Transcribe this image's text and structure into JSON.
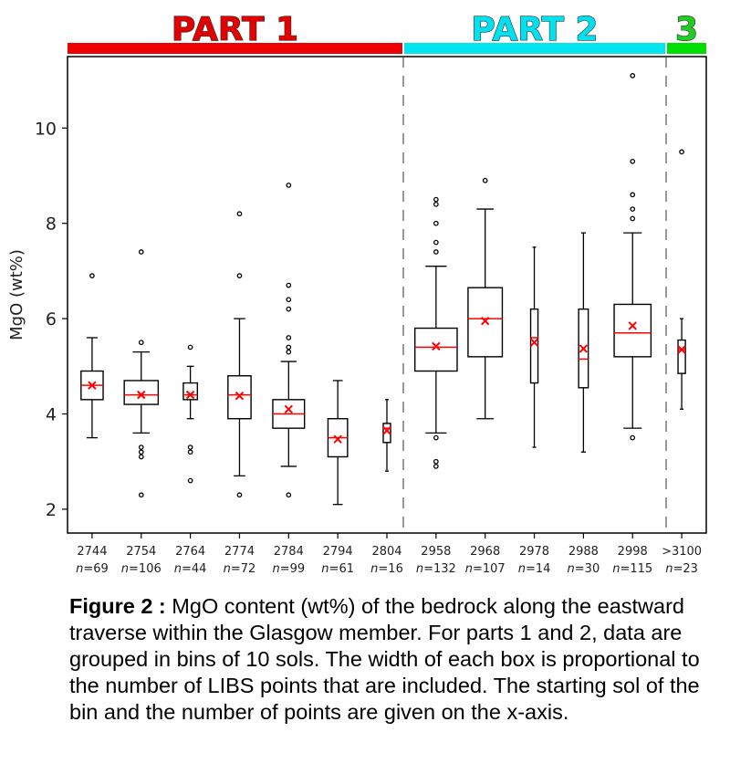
{
  "chart_data": {
    "type": "box",
    "ylabel": "MgO (wt%)",
    "ylim": [
      1.5,
      11.5
    ],
    "yticks": [
      2,
      4,
      6,
      8,
      10
    ],
    "parts": [
      {
        "label": "PART 1",
        "color": "#ee0000",
        "text_color": "#e00000",
        "outline": "#333333"
      },
      {
        "label": "PART 2",
        "color": "#00e5ee",
        "text_color": "#00e0ee",
        "outline": "#333333"
      },
      {
        "label": "3",
        "color": "#00dd00",
        "text_color": "#22cc22",
        "outline": "#333333"
      }
    ],
    "mean_color": "#ff0000",
    "median_color": "#ff0000",
    "bins": [
      {
        "sol": "2744",
        "n": "69",
        "whisker_low": 3.5,
        "q1": 4.3,
        "median": 4.6,
        "q3": 4.9,
        "whisker_high": 5.6,
        "mean": 4.6,
        "outliers": [
          6.9
        ]
      },
      {
        "sol": "2754",
        "n": "106",
        "whisker_low": 3.6,
        "q1": 4.2,
        "median": 4.4,
        "q3": 4.7,
        "whisker_high": 5.3,
        "mean": 4.4,
        "outliers": [
          7.4,
          5.5,
          3.3,
          3.2,
          3.1,
          2.3
        ]
      },
      {
        "sol": "2764",
        "n": "44",
        "whisker_low": 3.9,
        "q1": 4.3,
        "median": 4.4,
        "q3": 4.65,
        "whisker_high": 5.0,
        "mean": 4.4,
        "outliers": [
          5.4,
          3.3,
          3.2,
          2.6
        ]
      },
      {
        "sol": "2774",
        "n": "72",
        "whisker_low": 2.7,
        "q1": 3.9,
        "median": 4.4,
        "q3": 4.8,
        "whisker_high": 6.0,
        "mean": 4.38,
        "outliers": [
          8.2,
          6.9,
          2.3
        ]
      },
      {
        "sol": "2784",
        "n": "99",
        "whisker_low": 2.9,
        "q1": 3.7,
        "median": 4.0,
        "q3": 4.3,
        "whisker_high": 5.1,
        "mean": 4.1,
        "outliers": [
          8.8,
          6.7,
          6.4,
          6.2,
          5.6,
          5.4,
          5.3,
          2.3
        ]
      },
      {
        "sol": "2794",
        "n": "61",
        "whisker_low": 2.1,
        "q1": 3.1,
        "median": 3.5,
        "q3": 3.9,
        "whisker_high": 4.7,
        "mean": 3.47,
        "outliers": []
      },
      {
        "sol": "2804",
        "n": "16",
        "whisker_low": 2.8,
        "q1": 3.4,
        "median": 3.7,
        "q3": 3.8,
        "whisker_high": 4.3,
        "mean": 3.65,
        "outliers": []
      },
      {
        "sol": "2958",
        "n": "132",
        "whisker_low": 3.6,
        "q1": 4.9,
        "median": 5.4,
        "q3": 5.8,
        "whisker_high": 7.1,
        "mean": 5.42,
        "outliers": [
          8.5,
          8.4,
          8.0,
          7.6,
          7.4,
          3.5,
          3.0,
          2.9
        ]
      },
      {
        "sol": "2968",
        "n": "107",
        "whisker_low": 3.9,
        "q1": 5.2,
        "median": 6.0,
        "q3": 6.65,
        "whisker_high": 8.3,
        "mean": 5.95,
        "outliers": [
          8.9
        ]
      },
      {
        "sol": "2978",
        "n": "14",
        "whisker_low": 3.3,
        "q1": 4.65,
        "median": 5.6,
        "q3": 6.2,
        "whisker_high": 7.5,
        "mean": 5.5,
        "outliers": []
      },
      {
        "sol": "2988",
        "n": "30",
        "whisker_low": 3.2,
        "q1": 4.55,
        "median": 5.15,
        "q3": 6.2,
        "whisker_high": 7.8,
        "mean": 5.37,
        "outliers": []
      },
      {
        "sol": "2998",
        "n": "115",
        "whisker_low": 3.7,
        "q1": 5.2,
        "median": 5.7,
        "q3": 6.3,
        "whisker_high": 7.8,
        "mean": 5.85,
        "outliers": [
          11.1,
          9.3,
          8.6,
          8.3,
          8.1,
          3.5
        ]
      },
      {
        "sol": ">3100",
        "n": "23",
        "whisker_low": 4.1,
        "q1": 4.85,
        "median": 5.35,
        "q3": 5.55,
        "whisker_high": 6.0,
        "mean": 5.35,
        "outliers": [
          9.5
        ]
      }
    ]
  },
  "caption": {
    "label": "Figure 2 :",
    "text": "MgO content (wt%) of the bedrock along the eastward traverse within the Glasgow member. For parts 1 and 2, data are grouped in bins of 10 sols. The width of each box is proportional to the number of LIBS points that are included. The starting sol of the bin and the number of points are given on the x-axis."
  }
}
